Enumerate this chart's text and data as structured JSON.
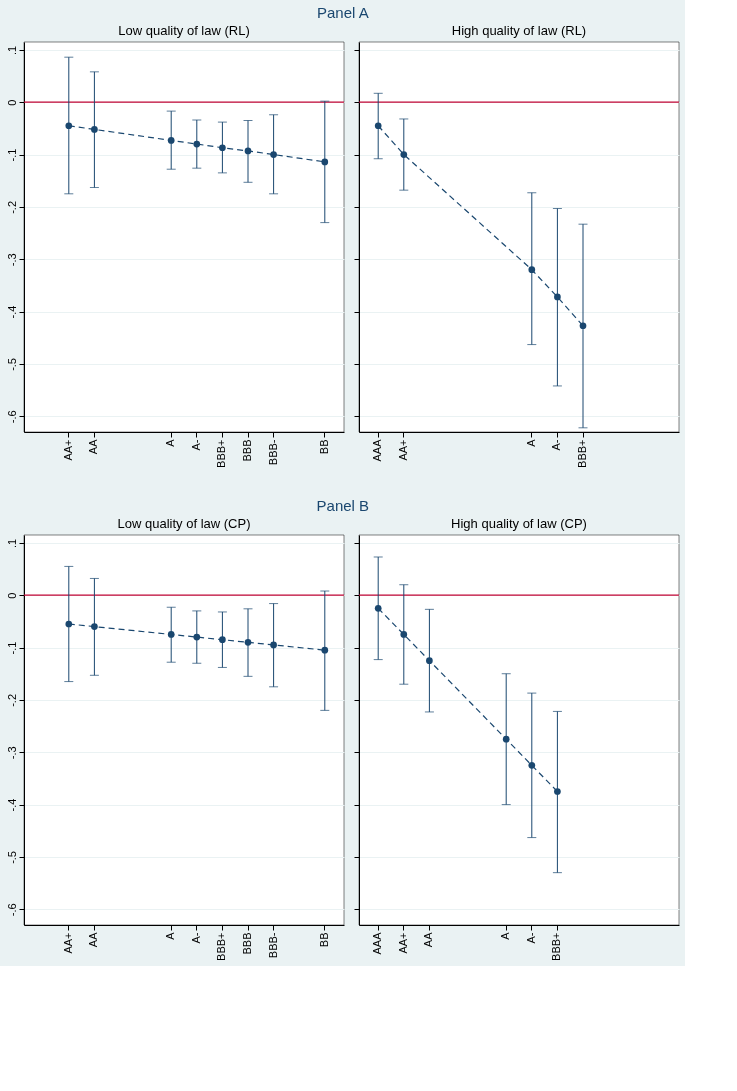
{
  "chart_data": [
    {
      "type": "line",
      "title": "Low quality of law (RL)",
      "annotations": [
        "Panel A"
      ],
      "ylim": [
        -0.63,
        0.115
      ],
      "categories": [
        null,
        "AA+",
        "AA",
        null,
        null,
        "A",
        "A-",
        "BBB+",
        "BBB",
        "BBB-",
        null,
        "BB"
      ],
      "yticks": [
        {
          "value": 0.1,
          "label": ".1"
        },
        0,
        {
          "value": -0.1,
          "label": "-.1"
        },
        {
          "value": -0.2,
          "label": "-.2"
        },
        {
          "value": -0.3,
          "label": "-.3"
        },
        {
          "value": -0.4,
          "label": "-.4"
        },
        {
          "value": -0.5,
          "label": "-.5"
        },
        {
          "value": -0.6,
          "label": "-.6"
        }
      ],
      "grid": "y",
      "marker": "circle",
      "line_style": "dashed",
      "ref_lines": [
        {
          "axis": "y",
          "value": 0,
          "color": "#c10534"
        }
      ],
      "series": [
        {
          "color": "#1a476f",
          "values": [
            null,
            -0.045,
            -0.052,
            null,
            null,
            -0.073,
            -0.08,
            -0.087,
            -0.093,
            -0.1,
            null,
            -0.114
          ],
          "errors": [
            null,
            [
              -0.175,
              0.086
            ],
            [
              -0.163,
              0.058
            ],
            null,
            null,
            [
              -0.128,
              -0.017
            ],
            [
              -0.126,
              -0.034
            ],
            [
              -0.135,
              -0.038
            ],
            [
              -0.153,
              -0.035
            ],
            [
              -0.175,
              -0.024
            ],
            null,
            [
              -0.23,
              0.002
            ]
          ]
        }
      ]
    },
    {
      "type": "line",
      "title": "High quality of law (RL)",
      "ylim": [
        -0.63,
        0.115
      ],
      "tick_labels": "x",
      "categories": [
        "AAA",
        "AA+",
        null,
        null,
        null,
        null,
        "A",
        "A-",
        "BBB+",
        null,
        null,
        null
      ],
      "yticks": [
        {
          "value": 0.1,
          "label": null
        },
        {
          "value": 0,
          "label": null
        },
        {
          "value": -0.1,
          "label": null
        },
        {
          "value": -0.2,
          "label": null
        },
        {
          "value": -0.3,
          "label": null
        },
        {
          "value": -0.4,
          "label": null
        },
        {
          "value": -0.5,
          "label": null
        },
        {
          "value": -0.6,
          "label": null
        }
      ],
      "grid": "y",
      "marker": "circle",
      "line_style": "dashed",
      "ref_lines": [
        {
          "axis": "y",
          "value": 0,
          "color": "#c10534"
        }
      ],
      "series": [
        {
          "color": "#1a476f",
          "values": [
            -0.045,
            -0.1,
            null,
            null,
            null,
            null,
            -0.32,
            -0.372,
            -0.427,
            null,
            null,
            null
          ],
          "errors": [
            [
              -0.108,
              0.017
            ],
            [
              -0.168,
              -0.032
            ],
            null,
            null,
            null,
            null,
            [
              -0.463,
              -0.173
            ],
            [
              -0.542,
              -0.203
            ],
            [
              -0.622,
              -0.233
            ],
            null,
            null,
            null
          ]
        }
      ]
    },
    {
      "type": "line",
      "title": "Low quality of law (CP)",
      "annotations": [
        "Panel B"
      ],
      "ylim": [
        -0.63,
        0.115
      ],
      "categories": [
        null,
        "AA+",
        "AA",
        null,
        null,
        "A",
        "A-",
        "BBB+",
        "BBB",
        "BBB-",
        null,
        "BB"
      ],
      "yticks": [
        {
          "value": 0.1,
          "label": ".1"
        },
        0,
        {
          "value": -0.1,
          "label": "-.1"
        },
        {
          "value": -0.2,
          "label": "-.2"
        },
        {
          "value": -0.3,
          "label": "-.3"
        },
        {
          "value": -0.4,
          "label": "-.4"
        },
        {
          "value": -0.5,
          "label": "-.5"
        },
        {
          "value": -0.6,
          "label": "-.6"
        }
      ],
      "grid": "y",
      "marker": "circle",
      "line_style": "dashed",
      "ref_lines": [
        {
          "axis": "y",
          "value": 0,
          "color": "#c10534"
        }
      ],
      "series": [
        {
          "color": "#1a476f",
          "values": [
            null,
            -0.055,
            -0.06,
            null,
            null,
            -0.075,
            -0.08,
            -0.085,
            -0.09,
            -0.095,
            null,
            -0.105
          ],
          "errors": [
            null,
            [
              -0.165,
              0.055
            ],
            [
              -0.153,
              0.032
            ],
            null,
            null,
            [
              -0.128,
              -0.023
            ],
            [
              -0.13,
              -0.03
            ],
            [
              -0.138,
              -0.032
            ],
            [
              -0.155,
              -0.026
            ],
            [
              -0.175,
              -0.016
            ],
            null,
            [
              -0.22,
              0.008
            ]
          ]
        }
      ]
    },
    {
      "type": "line",
      "title": "High quality of law (CP)",
      "ylim": [
        -0.63,
        0.115
      ],
      "tick_labels": "x",
      "categories": [
        "AAA",
        "AA+",
        "AA",
        null,
        null,
        "A",
        "A-",
        "BBB+",
        null,
        null,
        null,
        null
      ],
      "yticks": [
        {
          "value": 0.1,
          "label": null
        },
        {
          "value": 0,
          "label": null
        },
        {
          "value": -0.1,
          "label": null
        },
        {
          "value": -0.2,
          "label": null
        },
        {
          "value": -0.3,
          "label": null
        },
        {
          "value": -0.4,
          "label": null
        },
        {
          "value": -0.5,
          "label": null
        },
        {
          "value": -0.6,
          "label": null
        }
      ],
      "grid": "y",
      "marker": "circle",
      "line_style": "dashed",
      "ref_lines": [
        {
          "axis": "y",
          "value": 0,
          "color": "#c10534"
        }
      ],
      "series": [
        {
          "color": "#1a476f",
          "values": [
            -0.025,
            -0.075,
            -0.125,
            null,
            null,
            -0.275,
            -0.325,
            -0.375,
            null,
            null,
            null,
            null
          ],
          "errors": [
            [
              -0.123,
              0.073
            ],
            [
              -0.17,
              0.02
            ],
            [
              -0.223,
              -0.027
            ],
            null,
            null,
            [
              -0.4,
              -0.15
            ],
            [
              -0.463,
              -0.187
            ],
            [
              -0.53,
              -0.222
            ],
            null,
            null,
            null,
            null
          ]
        }
      ]
    }
  ]
}
